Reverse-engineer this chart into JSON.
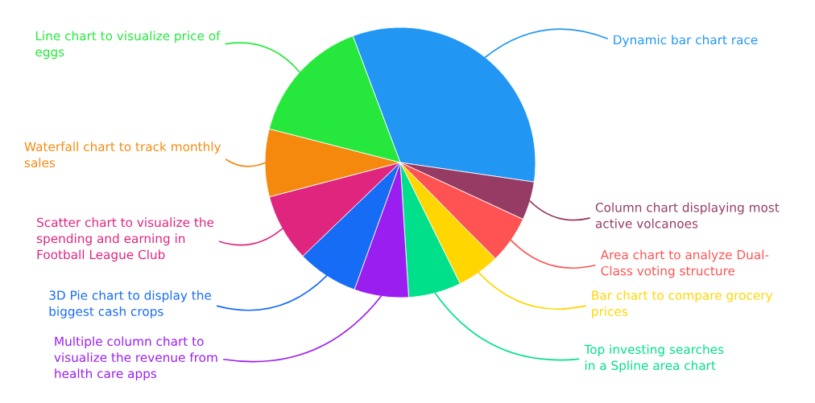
{
  "chart_data": {
    "type": "pie",
    "categories": [
      "Dynamic bar chart race",
      "Column chart displaying most\nactive volcanoes",
      "Area chart to analyze Dual-\nClass voting structure",
      "Bar chart to compare grocery\nprices",
      "Top investing searches\nin a Spline area chart",
      "Multiple column chart to\nvisualize the revenue from\nhealth care apps",
      "3D Pie chart to display the\nbiggest cash crops",
      "Scatter chart to visualize the\nspending and earning in\nFootball League Club",
      "Waterfall chart to track monthly\nsales",
      "Line chart to visualize price of\neggs"
    ],
    "values": [
      33.0,
      4.6,
      5.7,
      5.1,
      6.3,
      6.5,
      7.3,
      8.1,
      8.1,
      15.3
    ],
    "colors": [
      "#2196f3",
      "#963c64",
      "#ff5252",
      "#ffd600",
      "#00e08a",
      "#9a1ef0",
      "#166cf5",
      "#e0257f",
      "#f5890e",
      "#26e83c"
    ],
    "legend": false
  }
}
